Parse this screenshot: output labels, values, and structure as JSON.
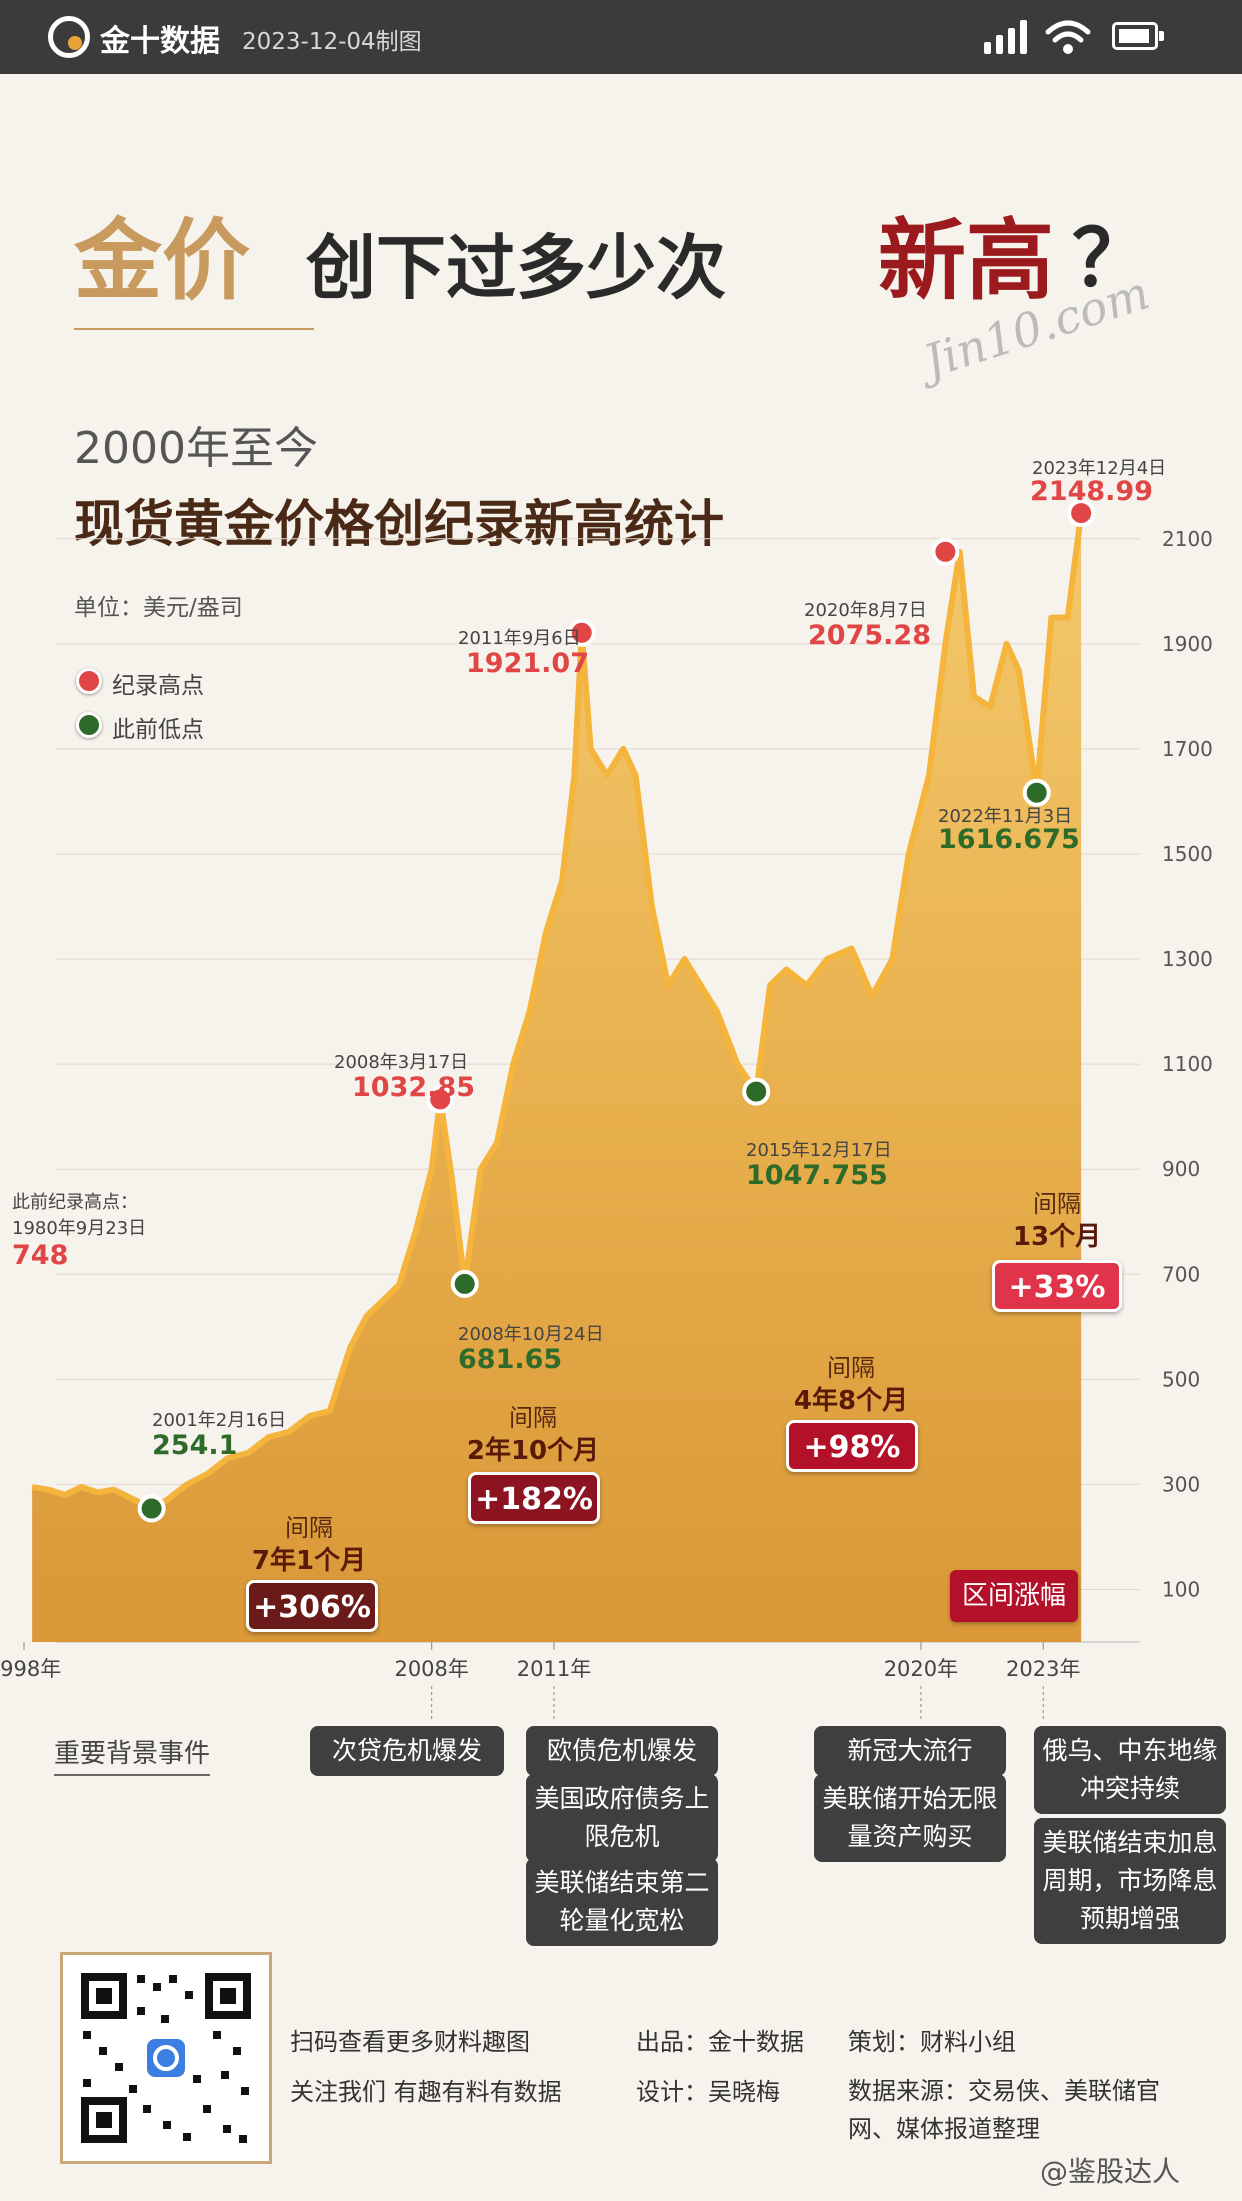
{
  "header": {
    "brand": "金十数据",
    "date_made": "2023-12-04制图"
  },
  "title": {
    "part1": "金价",
    "part2": "创下过多少次",
    "part3": "新高",
    "qmark": "？",
    "watermark": "Jin10.com"
  },
  "subtitle": {
    "line1": "2000年至今",
    "line2": "现货黄金价格创纪录新高统计"
  },
  "unit": "单位：美元/盎司",
  "legend": [
    {
      "label": "纪录高点",
      "color": "#e04646"
    },
    {
      "label": "此前低点",
      "color": "#2e6b2a"
    }
  ],
  "chart_data": {
    "type": "area",
    "y_ticks": [
      "100",
      "300",
      "500",
      "700",
      "900",
      "1100",
      "1300",
      "1500",
      "1700",
      "1900",
      "2100"
    ],
    "x_ticks": [
      "1998年",
      "2008年",
      "2011年",
      "2020年",
      "2023年"
    ],
    "ylim": [
      0,
      2250
    ],
    "xlim": [
      1998,
      2024
    ],
    "series": [
      {
        "x": [
          1998.2,
          1998.6,
          1999,
          1999.4,
          1999.8,
          2000.2,
          2000.6,
          2001.13,
          2001.5,
          2002,
          2002.5,
          2003,
          2003.5,
          2004,
          2004.5,
          2005,
          2005.5,
          2006,
          2006.4,
          2006.8,
          2007.2,
          2007.6,
          2008.0,
          2008.21,
          2008.5,
          2008.81,
          2009.2,
          2009.6,
          2010.0,
          2010.4,
          2010.8,
          2011.2,
          2011.5,
          2011.68,
          2011.9,
          2012.3,
          2012.7,
          2013.0,
          2013.4,
          2013.8,
          2014.2,
          2014.6,
          2015.0,
          2015.5,
          2015.96,
          2016.3,
          2016.7,
          2017.2,
          2017.7,
          2018.3,
          2018.8,
          2019.3,
          2019.7,
          2020.2,
          2020.6,
          2020.95,
          2021.3,
          2021.7,
          2022.1,
          2022.4,
          2022.84,
          2023.2,
          2023.6,
          2023.93
        ],
        "values": [
          295,
          290,
          280,
          295,
          285,
          290,
          275,
          254.1,
          270,
          300,
          320,
          350,
          360,
          390,
          400,
          430,
          440,
          560,
          620,
          650,
          680,
          780,
          900,
          1032.85,
          880,
          681.65,
          900,
          950,
          1100,
          1200,
          1350,
          1450,
          1650,
          1921.07,
          1700,
          1650,
          1700,
          1650,
          1400,
          1250,
          1300,
          1250,
          1200,
          1100,
          1047.755,
          1250,
          1280,
          1250,
          1300,
          1320,
          1230,
          1300,
          1500,
          1650,
          1900,
          2075.28,
          1800,
          1780,
          1900,
          1850,
          1616.675,
          1950,
          1950,
          2148.99
        ]
      }
    ],
    "highs": [
      {
        "date": "2008年3月17日",
        "value": "1032.85",
        "x": 2008.21,
        "y": 1032.85
      },
      {
        "date": "2011年9月6日",
        "value": "1921.07",
        "x": 2011.68,
        "y": 1921.07
      },
      {
        "date": "2020年8月7日",
        "value": "2075.28",
        "x": 2020.6,
        "y": 2075.28
      },
      {
        "date": "2023年12月4日",
        "value": "2148.99",
        "x": 2023.93,
        "y": 2148.99
      }
    ],
    "lows": [
      {
        "date": "2001年2月16日",
        "value": "254.1",
        "x": 2001.13,
        "y": 254.1
      },
      {
        "date": "2008年10月24日",
        "value": "681.65",
        "x": 2008.81,
        "y": 681.65
      },
      {
        "date": "2015年12月17日",
        "value": "1047.755",
        "x": 2015.96,
        "y": 1047.755
      },
      {
        "date": "2022年11月3日",
        "value": "1616.675",
        "x": 2022.84,
        "y": 1616.675
      }
    ],
    "prev_record": {
      "label": "此前纪录高点：",
      "date": "1980年9月23日",
      "value": "748"
    },
    "intervals": [
      {
        "label": "间隔",
        "duration": "7年1个月",
        "pct": "+306%"
      },
      {
        "label": "间隔",
        "duration": "2年10个月",
        "pct": "+182%"
      },
      {
        "label": "间隔",
        "duration": "4年8个月",
        "pct": "+98%"
      },
      {
        "label": "间隔",
        "duration": "13个月",
        "pct": "+33%"
      }
    ],
    "range_label": "区间涨幅"
  },
  "events": {
    "title": "重要背景事件",
    "e2008": [
      "次贷危机爆发"
    ],
    "e2011": [
      "欧债危机爆发",
      "美国政府债务上限危机",
      "美联储结束第二轮量化宽松"
    ],
    "e2020": [
      "新冠大流行",
      "美联储开始无限量资产购买"
    ],
    "e2023": [
      "俄乌、中东地缘冲突持续",
      "美联储结束加息周期，市场降息预期增强"
    ]
  },
  "footer": {
    "scan1": "扫码查看更多财料趣图",
    "scan2": "关注我们 有趣有料有数据",
    "producer": "出品：金十数据",
    "designer": "设计：吴晓梅",
    "planner": "策划：财料小组",
    "source": "数据来源：交易侠、美联储官网、媒体报道整理",
    "weibo": "@鉴股达人"
  }
}
